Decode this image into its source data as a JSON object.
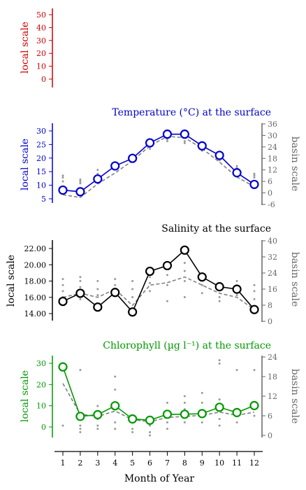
{
  "xaxis": {
    "label": "Month of Year",
    "ticks": [
      1,
      2,
      3,
      4,
      5,
      6,
      7,
      8,
      9,
      10,
      11,
      12
    ]
  },
  "colors": {
    "panel1": "#cc0000",
    "temperature": "#0000cc",
    "salinity": "#000000",
    "chlorophyll": "#009900",
    "basin": "#808080",
    "right_axis": "#666666"
  },
  "chart_data": [
    {
      "type": "line",
      "title": "",
      "ylabel": "local scale",
      "ylim": [
        -4,
        56
      ],
      "yticks": [
        0,
        10,
        20,
        30,
        40,
        50
      ],
      "series": []
    },
    {
      "type": "line",
      "title": "Temperature (°C) at the surface",
      "ylabel": "local scale",
      "ylabel_right": "basin scale",
      "ylim": [
        3,
        32
      ],
      "yticks": [
        5,
        10,
        15,
        20,
        25,
        30
      ],
      "ylim_right": [
        -6,
        36
      ],
      "yticks_right": [
        -6,
        0,
        6,
        12,
        18,
        24,
        30,
        36
      ],
      "x": [
        1,
        2,
        3,
        4,
        5,
        6,
        7,
        8,
        9,
        10,
        11,
        12
      ],
      "series": [
        {
          "role": "local",
          "values": [
            8.2,
            7.6,
            12.3,
            17.1,
            19.9,
            25.6,
            28.8,
            28.8,
            24.5,
            21.0,
            14.6,
            10.3
          ]
        },
        {
          "role": "basin",
          "values": [
            6.5,
            5.5,
            10.5,
            14.5,
            19.0,
            24.5,
            28.0,
            27.5,
            23.5,
            18.5,
            13.0,
            9.5
          ]
        }
      ],
      "scatter": [
        [
          1,
          8
        ],
        [
          1,
          9
        ],
        [
          1,
          6
        ],
        [
          2,
          5
        ],
        [
          2,
          7
        ],
        [
          2,
          6
        ],
        [
          3,
          10
        ],
        [
          3,
          12
        ],
        [
          3,
          9
        ],
        [
          4,
          15
        ],
        [
          4,
          16
        ],
        [
          4,
          13
        ],
        [
          5,
          18
        ],
        [
          5,
          20
        ],
        [
          5,
          17
        ],
        [
          6,
          24
        ],
        [
          6,
          25
        ],
        [
          6,
          23
        ],
        [
          7,
          28
        ],
        [
          7,
          27
        ],
        [
          7,
          29
        ],
        [
          8,
          27
        ],
        [
          8,
          26
        ],
        [
          8,
          29
        ],
        [
          9,
          24
        ],
        [
          9,
          22
        ],
        [
          9,
          23
        ],
        [
          10,
          18
        ],
        [
          10,
          19
        ],
        [
          10,
          17
        ],
        [
          11,
          13
        ],
        [
          11,
          14
        ],
        [
          11,
          12
        ],
        [
          12,
          10
        ],
        [
          12,
          9
        ],
        [
          12,
          8
        ]
      ]
    },
    {
      "type": "line",
      "title": "Salinity at the surface",
      "ylabel": "local scale",
      "ylabel_right": "basin scale",
      "ylim": [
        13.0,
        22.6
      ],
      "yticks": [
        14.0,
        16.0,
        18.0,
        20.0,
        22.0
      ],
      "ylim_right": [
        0,
        40
      ],
      "yticks_right": [
        0,
        8,
        16,
        24,
        32,
        40
      ],
      "x": [
        1,
        2,
        3,
        4,
        5,
        6,
        7,
        8,
        9,
        10,
        11,
        12
      ],
      "series": [
        {
          "role": "local",
          "values": [
            15.5,
            16.5,
            14.8,
            16.6,
            14.2,
            19.2,
            19.9,
            21.8,
            18.5,
            17.3,
            17.0,
            14.5
          ]
        },
        {
          "role": "basin",
          "values": [
            16.0,
            16.5,
            16.0,
            17.0,
            15.0,
            17.5,
            17.8,
            18.5,
            17.5,
            16.5,
            16.0,
            14.5
          ]
        }
      ],
      "scatter": [
        [
          1,
          21
        ],
        [
          1,
          18
        ],
        [
          1,
          15
        ],
        [
          1,
          12
        ],
        [
          2,
          22
        ],
        [
          2,
          20
        ],
        [
          2,
          17
        ],
        [
          2,
          14
        ],
        [
          2,
          11
        ],
        [
          3,
          20
        ],
        [
          3,
          16
        ],
        [
          3,
          13
        ],
        [
          4,
          21
        ],
        [
          4,
          18
        ],
        [
          4,
          14
        ],
        [
          5,
          20
        ],
        [
          5,
          16
        ],
        [
          5,
          12
        ],
        [
          6,
          22
        ],
        [
          6,
          19
        ],
        [
          6,
          15
        ],
        [
          7,
          23
        ],
        [
          7,
          18
        ],
        [
          7,
          10
        ],
        [
          8,
          29
        ],
        [
          8,
          25
        ],
        [
          8,
          20
        ],
        [
          8,
          12
        ],
        [
          9,
          22
        ],
        [
          9,
          18
        ],
        [
          9,
          14
        ],
        [
          10,
          19
        ],
        [
          10,
          16
        ],
        [
          10,
          12
        ],
        [
          10,
          10
        ],
        [
          11,
          20
        ],
        [
          11,
          17
        ],
        [
          11,
          13
        ],
        [
          12,
          18
        ],
        [
          12,
          15
        ],
        [
          12,
          11
        ]
      ]
    },
    {
      "type": "line",
      "title": "Chlorophyll (µg l⁻¹) at the surface",
      "ylabel": "local scale",
      "ylabel_right": "basin scale",
      "ylim": [
        -3,
        36
      ],
      "yticks": [
        0,
        10,
        20,
        30
      ],
      "ylim_right": [
        0,
        24
      ],
      "yticks_right": [
        0,
        6,
        12,
        18,
        24
      ],
      "x": [
        1,
        2,
        3,
        4,
        5,
        6,
        7,
        8,
        9,
        10,
        11,
        12
      ],
      "series": [
        {
          "role": "local",
          "values": [
            28.3,
            5.0,
            5.8,
            10.0,
            3.8,
            3.2,
            6.0,
            6.0,
            6.3,
            9.3,
            6.8,
            10.1
          ]
        },
        {
          "role": "basin",
          "values": [
            20.5,
            6.0,
            5.0,
            7.5,
            3.5,
            2.5,
            4.5,
            5.0,
            5.5,
            7.0,
            5.5,
            7.0
          ]
        }
      ],
      "scatter": [
        [
          1,
          21
        ],
        [
          1,
          20
        ],
        [
          1,
          3
        ],
        [
          2,
          20
        ],
        [
          2,
          5
        ],
        [
          2,
          3
        ],
        [
          2,
          2
        ],
        [
          2,
          1
        ],
        [
          3,
          9
        ],
        [
          3,
          5
        ],
        [
          3,
          3
        ],
        [
          3,
          2
        ],
        [
          4,
          18
        ],
        [
          4,
          14
        ],
        [
          4,
          9
        ],
        [
          4,
          4
        ],
        [
          4,
          2
        ],
        [
          5,
          6
        ],
        [
          5,
          4
        ],
        [
          5,
          2
        ],
        [
          5,
          1
        ],
        [
          6,
          3
        ],
        [
          6,
          1
        ],
        [
          6,
          0
        ],
        [
          7,
          10
        ],
        [
          7,
          7
        ],
        [
          7,
          4
        ],
        [
          7,
          2
        ],
        [
          8,
          12
        ],
        [
          8,
          10
        ],
        [
          8,
          8
        ],
        [
          8,
          6
        ],
        [
          8,
          4
        ],
        [
          9,
          13
        ],
        [
          9,
          10
        ],
        [
          9,
          7
        ],
        [
          9,
          4
        ],
        [
          10,
          23
        ],
        [
          10,
          22
        ],
        [
          10,
          11
        ],
        [
          10,
          5
        ],
        [
          10,
          3
        ],
        [
          11,
          20
        ],
        [
          11,
          8
        ],
        [
          11,
          4
        ],
        [
          12,
          20
        ],
        [
          12,
          10
        ],
        [
          12,
          6
        ]
      ]
    }
  ]
}
